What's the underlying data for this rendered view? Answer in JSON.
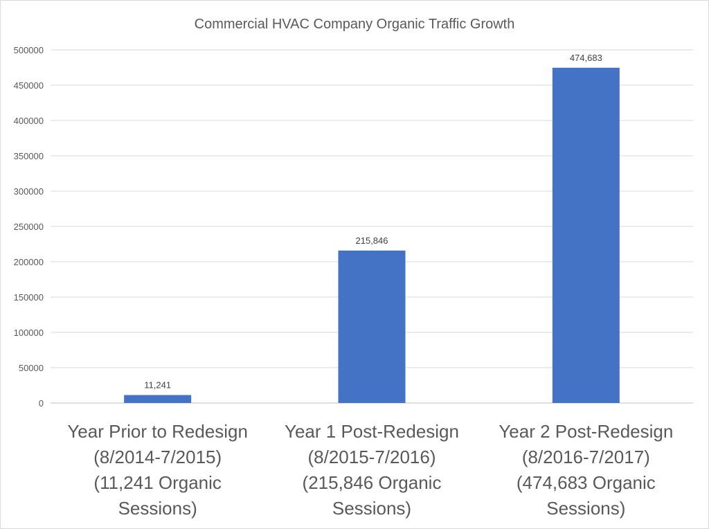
{
  "chart_data": {
    "type": "bar",
    "title": "Commercial HVAC Company Organic Traffic Growth",
    "categories": [
      [
        "Year Prior to Redesign",
        "(8/2014-7/2015)",
        "(11,241 Organic",
        "Sessions)"
      ],
      [
        "Year 1 Post-Redesign",
        "(8/2015-7/2016)",
        "(215,846 Organic",
        "Sessions)"
      ],
      [
        "Year 2 Post-Redesign",
        "(8/2016-7/2017)",
        "(474,683 Organic",
        "Sessions)"
      ]
    ],
    "values": [
      11241,
      215846,
      474683
    ],
    "data_labels": [
      "11,241",
      "215,846",
      "474,683"
    ],
    "yticks": [
      "0",
      "50000",
      "100000",
      "150000",
      "200000",
      "250000",
      "300000",
      "350000",
      "400000",
      "450000",
      "500000"
    ],
    "ylim": [
      0,
      500000
    ],
    "grid": true,
    "bar_color": "#4472c4",
    "legend": "none"
  }
}
